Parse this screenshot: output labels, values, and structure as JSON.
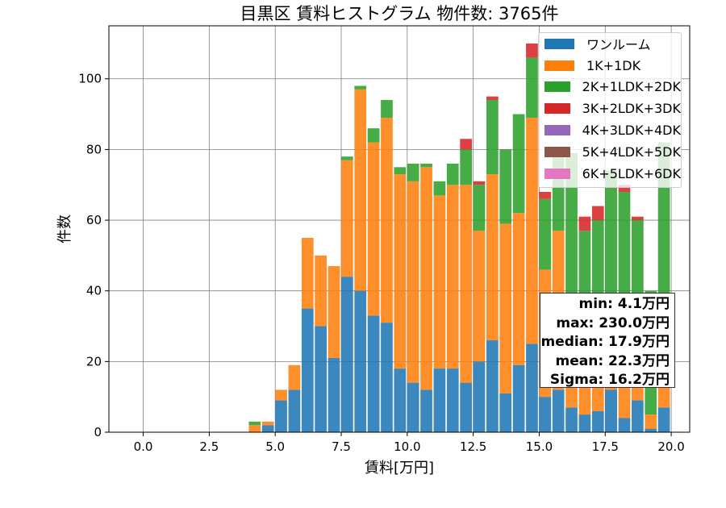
{
  "chart_data": {
    "type": "bar",
    "stacked": true,
    "title": "目黒区 賃料ヒストグラム 物件数: 3765件",
    "xlabel": "賃料[万円]",
    "ylabel": "件数",
    "xlim": [
      -1.3,
      20.7
    ],
    "ylim": [
      0,
      115
    ],
    "xticks": [
      "0.0",
      "2.5",
      "5.0",
      "7.5",
      "10.0",
      "12.5",
      "15.0",
      "17.5",
      "20.0"
    ],
    "yticks": [
      "0",
      "20",
      "40",
      "60",
      "80",
      "100"
    ],
    "grid": true,
    "legend_position": "top-right",
    "bin_width": 0.5,
    "x": [
      4.0,
      4.5,
      5.0,
      5.5,
      6.0,
      6.5,
      7.0,
      7.5,
      8.0,
      8.5,
      9.0,
      9.5,
      10.0,
      10.5,
      11.0,
      11.5,
      12.0,
      12.5,
      13.0,
      13.5,
      14.0,
      14.5,
      15.0,
      15.5,
      16.0,
      16.5,
      17.0,
      17.5,
      18.0,
      18.5,
      19.0,
      19.5
    ],
    "series": [
      {
        "name": "ワンルーム",
        "color": "#1f77b4",
        "values": [
          0,
          2,
          9,
          12,
          35,
          30,
          21,
          44,
          40,
          33,
          31,
          18,
          14,
          12,
          18,
          18,
          14,
          20,
          26,
          11,
          19,
          25,
          10,
          12,
          7,
          5,
          6,
          12,
          4,
          9,
          1,
          7
        ]
      },
      {
        "name": "1K+1DK",
        "color": "#ff7f0e",
        "values": [
          2,
          1,
          3,
          7,
          20,
          20,
          26,
          33,
          57,
          49,
          58,
          55,
          57,
          63,
          49,
          52,
          56,
          37,
          47,
          48,
          43,
          64,
          36,
          45,
          30,
          28,
          25,
          20,
          22,
          20,
          4,
          15
        ]
      },
      {
        "name": "2K+1LDK+2DK",
        "color": "#2ca02c",
        "values": [
          1,
          0,
          0,
          0,
          0,
          0,
          0,
          1,
          1,
          4,
          5,
          2,
          5,
          1,
          4,
          6,
          10,
          13,
          21,
          21,
          28,
          17,
          20,
          22,
          42,
          24,
          29,
          42,
          42,
          31,
          35,
          60
        ]
      },
      {
        "name": "3K+2LDK+3DK",
        "color": "#d62728",
        "values": [
          0,
          0,
          0,
          0,
          0,
          0,
          0,
          0,
          0,
          0,
          0,
          0,
          0,
          0,
          0,
          0,
          3,
          1,
          1,
          0,
          0,
          4,
          2,
          0,
          0,
          4,
          4,
          0,
          2,
          1,
          0,
          0
        ]
      },
      {
        "name": "4K+3LDK+4DK",
        "color": "#9467bd",
        "values": [
          0,
          0,
          0,
          0,
          0,
          0,
          0,
          0,
          0,
          0,
          0,
          0,
          0,
          0,
          0,
          0,
          0,
          0,
          0,
          0,
          0,
          0,
          0,
          0,
          0,
          0,
          0,
          0,
          0,
          0,
          0,
          0
        ]
      },
      {
        "name": "5K+4LDK+5DK",
        "color": "#8c564b",
        "values": [
          0,
          0,
          0,
          0,
          0,
          0,
          0,
          0,
          0,
          0,
          0,
          0,
          0,
          0,
          0,
          0,
          0,
          0,
          0,
          0,
          0,
          0,
          0,
          0,
          0,
          0,
          0,
          0,
          0,
          0,
          0,
          0
        ]
      },
      {
        "name": "6K+5LDK+6DK",
        "color": "#e377c2",
        "values": [
          0,
          0,
          0,
          0,
          0,
          0,
          0,
          0,
          0,
          0,
          0,
          0,
          0,
          0,
          0,
          0,
          0,
          0,
          0,
          0,
          0,
          0,
          0,
          0,
          0,
          0,
          0,
          0,
          0,
          0,
          0,
          0
        ]
      }
    ],
    "stats": {
      "min": "min: 4.1万円",
      "max": "max: 230.0万円",
      "median": "median: 17.9万円",
      "mean": "mean: 22.3万円",
      "sigma": "Sigma: 16.2万円"
    }
  }
}
